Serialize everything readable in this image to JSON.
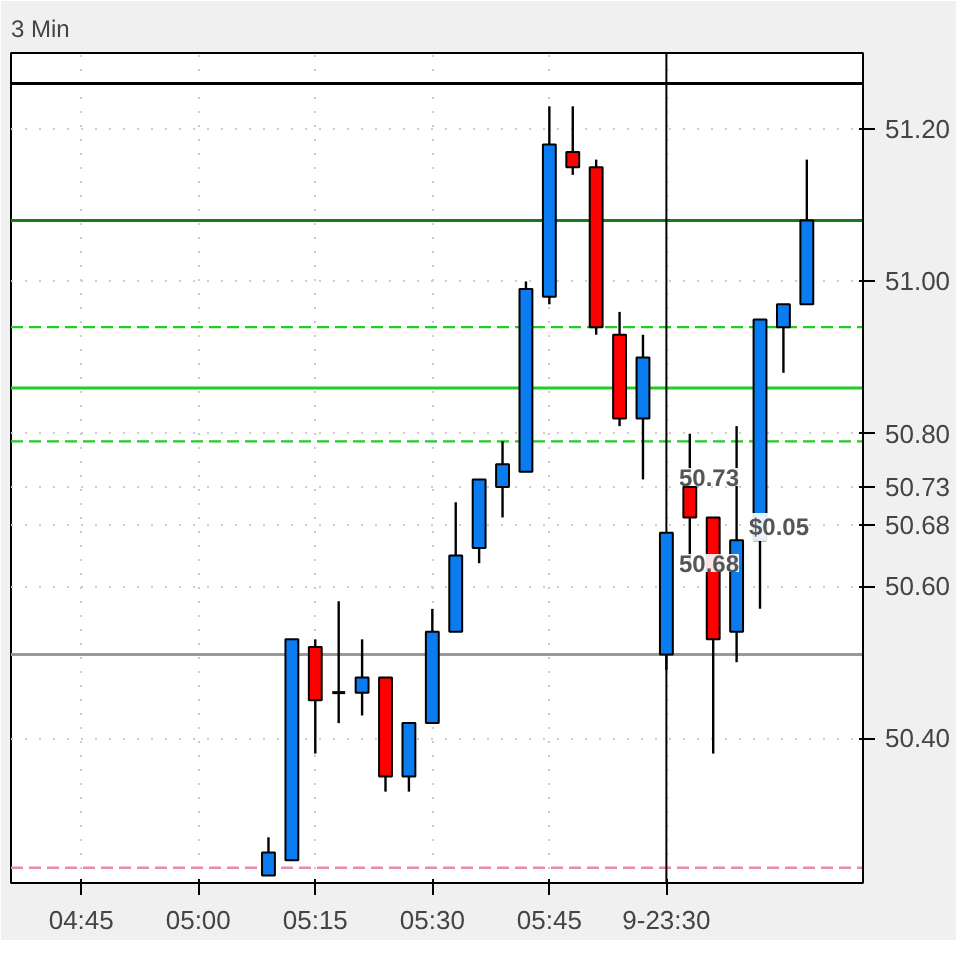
{
  "chart_data": {
    "type": "candlestick",
    "title": "3 Min",
    "x": [
      5.15,
      5.2,
      5.25,
      5.3,
      5.35,
      5.4,
      5.45,
      5.5,
      5.55,
      5.6,
      5.65,
      5.7,
      5.75,
      5.8,
      5.85,
      5.9,
      5.95,
      6.0,
      6.05,
      6.1,
      6.15,
      6.2,
      6.25,
      6.3
    ],
    "ohlc": [
      [
        50.22,
        50.27,
        50.22,
        50.25
      ],
      [
        50.24,
        50.53,
        50.24,
        50.53
      ],
      [
        50.52,
        50.53,
        50.38,
        50.45
      ],
      [
        50.46,
        50.58,
        50.42,
        50.46
      ],
      [
        50.46,
        50.53,
        50.43,
        50.48
      ],
      [
        50.48,
        50.48,
        50.33,
        50.35
      ],
      [
        50.35,
        50.42,
        50.33,
        50.42
      ],
      [
        50.42,
        50.57,
        50.42,
        50.54
      ],
      [
        50.54,
        50.71,
        50.54,
        50.64
      ],
      [
        50.65,
        50.74,
        50.63,
        50.74
      ],
      [
        50.73,
        50.79,
        50.69,
        50.76
      ],
      [
        50.75,
        51.0,
        50.75,
        50.99
      ],
      [
        50.98,
        51.23,
        50.97,
        51.18
      ],
      [
        51.17,
        51.23,
        51.14,
        51.15
      ],
      [
        51.15,
        51.16,
        50.93,
        50.94
      ],
      [
        50.93,
        50.96,
        50.81,
        50.82
      ],
      [
        50.82,
        50.93,
        50.74,
        50.9
      ],
      [
        50.51,
        50.67,
        50.49,
        50.67
      ],
      [
        50.73,
        50.8,
        50.62,
        50.69
      ],
      [
        50.69,
        50.69,
        50.38,
        50.53
      ],
      [
        50.54,
        50.81,
        50.5,
        50.66
      ],
      [
        50.66,
        50.95,
        50.57,
        50.95
      ],
      [
        50.94,
        50.97,
        50.88,
        50.97
      ],
      [
        50.97,
        51.16,
        50.97,
        51.08
      ]
    ],
    "colors": [
      "#0a7cf0",
      "#0a7cf0",
      "#ff0000",
      "#000000",
      "#0a7cf0",
      "#ff0000",
      "#0a7cf0",
      "#0a7cf0",
      "#0a7cf0",
      "#0a7cf0",
      "#0a7cf0",
      "#0a7cf0",
      "#0a7cf0",
      "#ff0000",
      "#ff0000",
      "#ff0000",
      "#0a7cf0",
      "#0a7cf0",
      "#ff0000",
      "#ff0000",
      "#0a7cf0",
      "#0a7cf0",
      "#0a7cf0",
      "#0a7cf0"
    ],
    "xlim": [
      4.6,
      6.42
    ],
    "ylim": [
      50.21,
      51.3
    ],
    "xticks": [
      {
        "value": 4.75,
        "label": "04:45"
      },
      {
        "value": 5.0,
        "label": "05:00"
      },
      {
        "value": 5.25,
        "label": "05:15"
      },
      {
        "value": 5.5,
        "label": "05:30"
      },
      {
        "value": 5.75,
        "label": "05:45"
      },
      {
        "value": 6.0,
        "label": "9-23:30"
      }
    ],
    "yticks": [
      {
        "value": 50.4,
        "label": "50.40"
      },
      {
        "value": 50.6,
        "label": "50.60"
      },
      {
        "value": 50.8,
        "label": "50.80"
      },
      {
        "value": 51.0,
        "label": "51.00"
      },
      {
        "value": 51.2,
        "label": "51.20"
      },
      {
        "value": 50.73,
        "label": "50.73"
      },
      {
        "value": 50.68,
        "label": "50.68"
      }
    ],
    "grid": true,
    "ref_lines": [
      {
        "axis": "y",
        "value": 51.26,
        "color": "#000000",
        "line_style": "solid"
      },
      {
        "axis": "y",
        "value": 51.08,
        "color": "#1a7a1a",
        "line_style": "solid"
      },
      {
        "axis": "y",
        "value": 50.94,
        "color": "#22cc22",
        "line_style": "dashed"
      },
      {
        "axis": "y",
        "value": 50.86,
        "color": "#22cc22",
        "line_style": "solid"
      },
      {
        "axis": "y",
        "value": 50.79,
        "color": "#22cc22",
        "line_style": "dashed"
      },
      {
        "axis": "y",
        "value": 50.51,
        "color": "#999999",
        "line_style": "solid"
      },
      {
        "axis": "y",
        "value": 50.23,
        "color": "#e88ab0",
        "line_style": "dashed"
      },
      {
        "axis": "x",
        "value": 6.0,
        "color": "#000000",
        "line_style": "solid"
      }
    ],
    "annotations": [
      "50.73",
      "$0.05",
      "50.68"
    ]
  }
}
